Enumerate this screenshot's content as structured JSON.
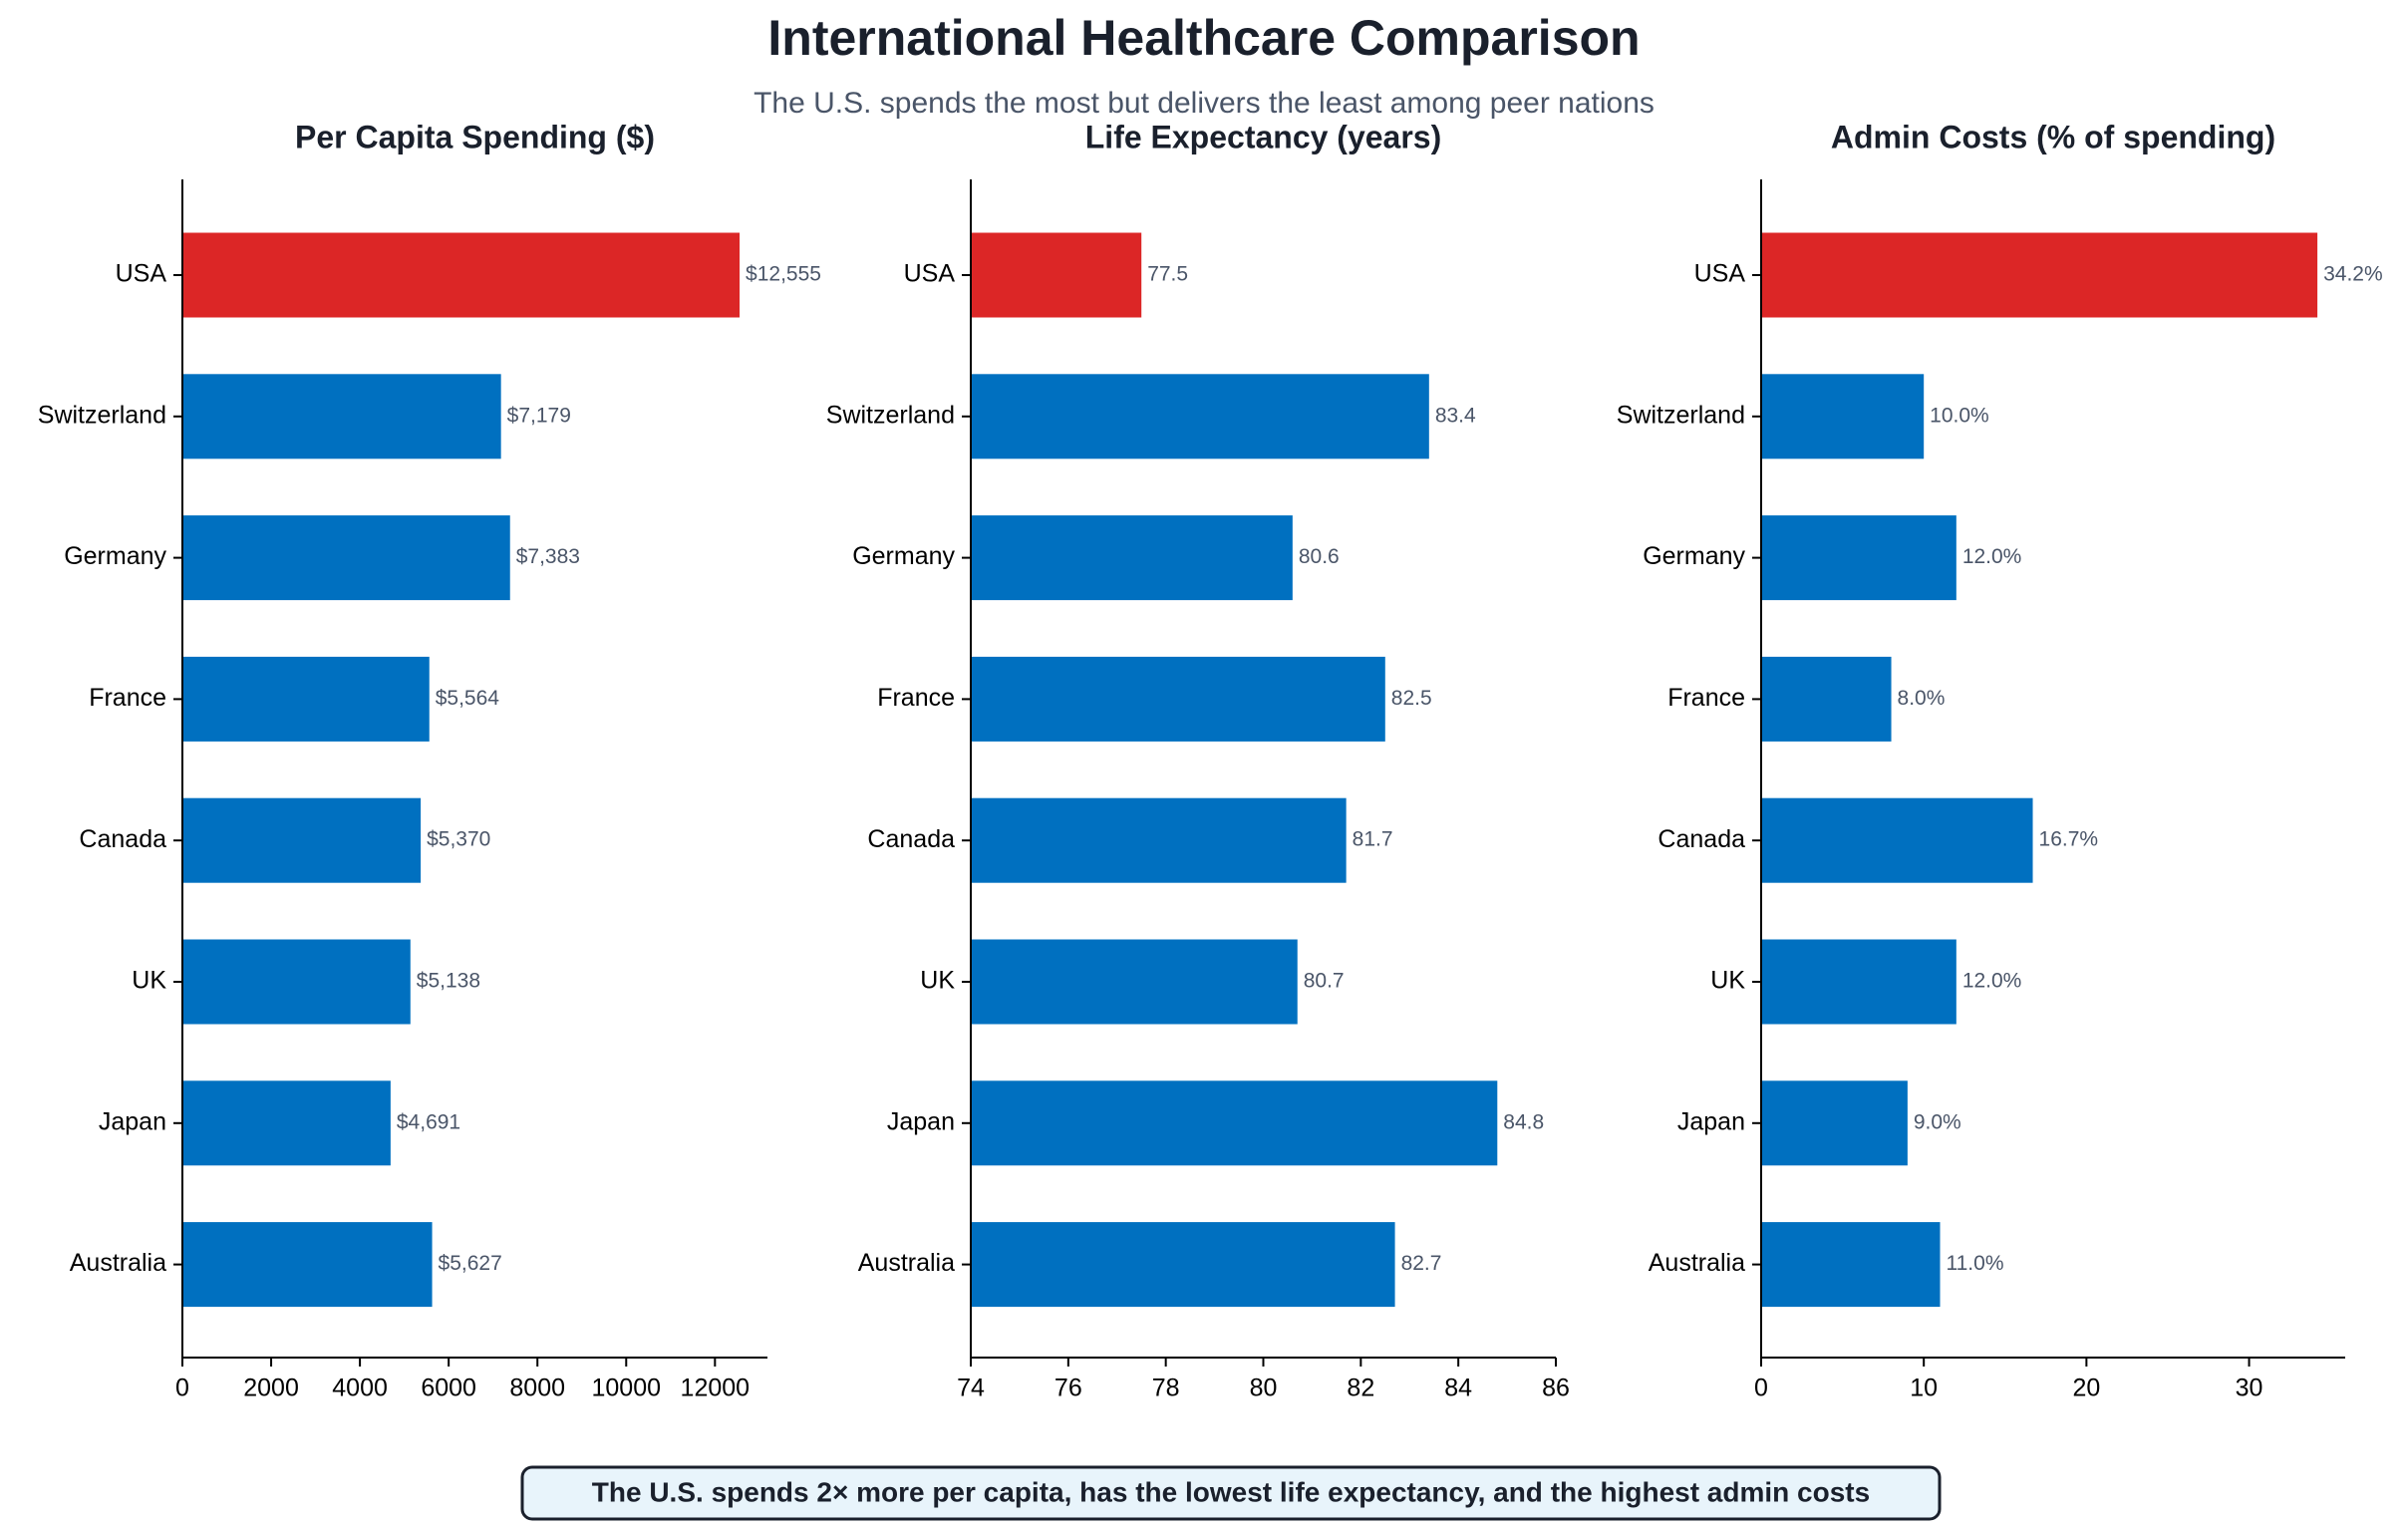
{
  "header": {
    "title": "International Healthcare Comparison",
    "subtitle": "The U.S. spends the most but delivers the least among peer nations"
  },
  "footer_note": "The U.S. spends 2× more per capita, has the lowest life expectancy, and the highest admin costs",
  "chart_data": [
    {
      "type": "bar",
      "orientation": "horizontal",
      "title": "Per Capita Spending ($)",
      "categories": [
        "USA",
        "Switzerland",
        "Germany",
        "France",
        "Canada",
        "UK",
        "Japan",
        "Australia"
      ],
      "values": [
        12555,
        7179,
        7383,
        5564,
        5370,
        5138,
        4691,
        5627
      ],
      "value_labels": [
        "$12,555",
        "$7,179",
        "$7,383",
        "$5,564",
        "$5,370",
        "$5,138",
        "$4,691",
        "$5,627"
      ],
      "colors": [
        "#dc2626",
        "#0070c0",
        "#0070c0",
        "#0070c0",
        "#0070c0",
        "#0070c0",
        "#0070c0",
        "#0070c0"
      ],
      "xlim": [
        0,
        13183
      ],
      "xticks": [
        0,
        2000,
        4000,
        6000,
        8000,
        10000,
        12000
      ]
    },
    {
      "type": "bar",
      "orientation": "horizontal",
      "title": "Life Expectancy (years)",
      "categories": [
        "USA",
        "Switzerland",
        "Germany",
        "France",
        "Canada",
        "UK",
        "Japan",
        "Australia"
      ],
      "values": [
        77.5,
        83.4,
        80.6,
        82.5,
        81.7,
        80.7,
        84.8,
        82.7
      ],
      "colors": [
        "#dc2626",
        "#0070c0",
        "#0070c0",
        "#0070c0",
        "#0070c0",
        "#0070c0",
        "#0070c0",
        "#0070c0"
      ],
      "xlim": [
        74,
        86
      ],
      "xticks": [
        74,
        76,
        78,
        80,
        82,
        84,
        86
      ]
    },
    {
      "type": "bar",
      "orientation": "horizontal",
      "title": "Admin Costs (% of spending)",
      "categories": [
        "USA",
        "Switzerland",
        "Germany",
        "France",
        "Canada",
        "UK",
        "Japan",
        "Australia"
      ],
      "values": [
        34.2,
        10.0,
        12.0,
        8.0,
        16.7,
        12.0,
        9.0,
        11.0
      ],
      "value_labels": [
        "34.2%",
        "10.0%",
        "12.0%",
        "8.0%",
        "16.7%",
        "12.0%",
        "9.0%",
        "11.0%"
      ],
      "colors": [
        "#dc2626",
        "#0070c0",
        "#0070c0",
        "#0070c0",
        "#0070c0",
        "#0070c0",
        "#0070c0",
        "#0070c0"
      ],
      "xlim": [
        0,
        35.91
      ],
      "xticks": [
        0,
        10,
        20,
        30
      ]
    }
  ]
}
